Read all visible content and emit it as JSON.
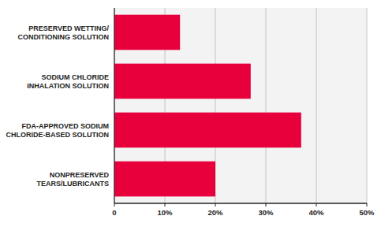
{
  "chart_data": {
    "type": "bar",
    "orientation": "horizontal",
    "categories": [
      "PRESERVED WETTING/\nCONDITIONING SOLUTION",
      "SODIUM CHLORIDE\nINHALATION SOLUTION",
      "FDA-APPROVED SODIUM\nCHLORIDE-BASED SOLUTION",
      "NONPRESERVED\nTEARS/LUBRICANTS"
    ],
    "values": [
      13,
      27,
      37,
      20
    ],
    "color": "#e8003d",
    "xlim": [
      0,
      50
    ],
    "xticks": [
      0,
      {
        "value": 10,
        "label": "10%"
      },
      {
        "value": 20,
        "label": "20%"
      },
      {
        "value": 30,
        "label": "30%"
      },
      {
        "value": 40,
        "label": "40%"
      },
      {
        "value": 50,
        "label": "50%"
      }
    ],
    "grid": true
  }
}
